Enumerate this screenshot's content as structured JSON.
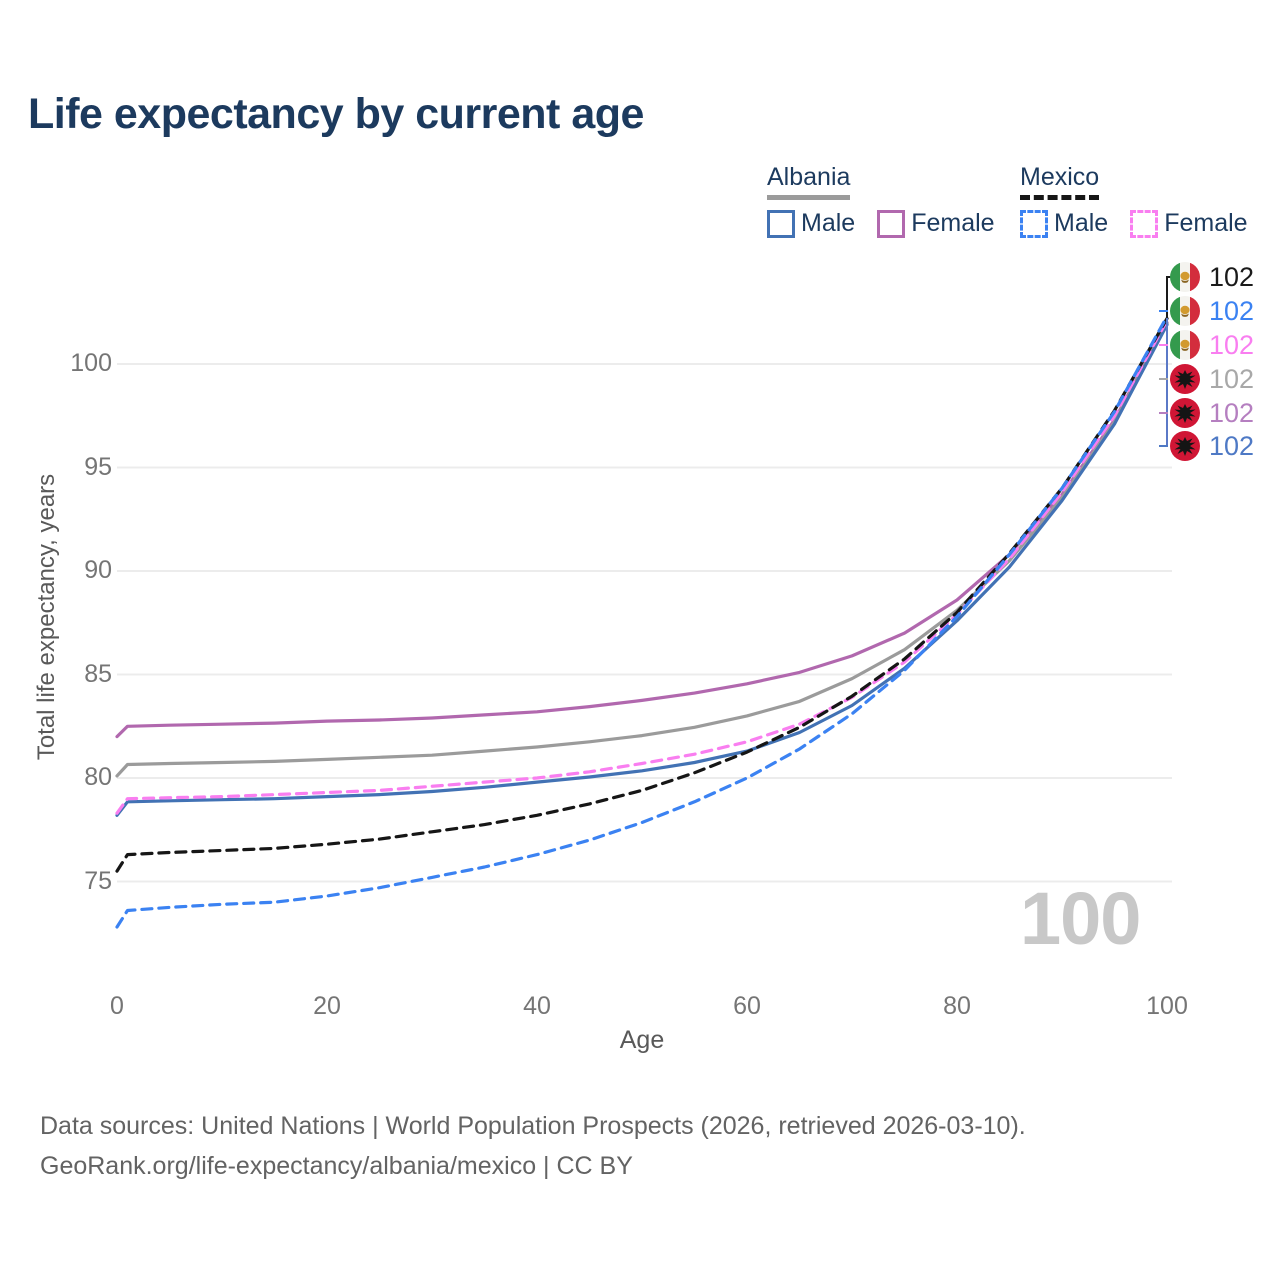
{
  "title": "Life expectancy by current age",
  "legend": {
    "albania": {
      "label": "Albania",
      "male": "Male",
      "female": "Female"
    },
    "mexico": {
      "label": "Mexico",
      "male": "Male",
      "female": "Female"
    }
  },
  "chart_data": {
    "type": "line",
    "title": "Life expectancy by current age",
    "xlabel": "Age",
    "ylabel": "Total life expectancy, years",
    "x_ticks": [
      0,
      20,
      40,
      60,
      80,
      100
    ],
    "y_ticks": [
      75,
      80,
      85,
      90,
      95,
      100
    ],
    "xlim": [
      0,
      100
    ],
    "ylim": [
      72,
      103.5
    ],
    "grid": "horizontal",
    "legend_position": "top-right",
    "watermark": "100",
    "ages": [
      0,
      1,
      5,
      10,
      15,
      20,
      25,
      30,
      35,
      40,
      45,
      50,
      55,
      60,
      65,
      70,
      75,
      80,
      85,
      90,
      95,
      100
    ],
    "series": [
      {
        "name": "Albania Female",
        "country": "Albania",
        "sex": "Female",
        "style": "solid",
        "color": "#b168ae",
        "values": [
          82.0,
          82.5,
          82.55,
          82.6,
          82.65,
          82.75,
          82.8,
          82.9,
          83.05,
          83.2,
          83.45,
          83.75,
          84.1,
          84.55,
          85.1,
          85.9,
          87.0,
          88.6,
          90.8,
          93.7,
          97.3,
          102.0
        ]
      },
      {
        "name": "Albania Total",
        "country": "Albania",
        "sex": "Both",
        "style": "solid",
        "color": "#9b9b9b",
        "values": [
          80.1,
          80.65,
          80.7,
          80.75,
          80.8,
          80.9,
          81.0,
          81.1,
          81.3,
          81.5,
          81.75,
          82.05,
          82.45,
          83.0,
          83.7,
          84.8,
          86.2,
          88.1,
          90.5,
          93.55,
          97.2,
          101.95
        ]
      },
      {
        "name": "Albania Male",
        "country": "Albania",
        "sex": "Male",
        "style": "solid",
        "color": "#4272b4",
        "values": [
          78.2,
          78.85,
          78.9,
          78.95,
          79.0,
          79.1,
          79.2,
          79.35,
          79.55,
          79.8,
          80.05,
          80.35,
          80.75,
          81.3,
          82.2,
          83.5,
          85.3,
          87.6,
          90.2,
          93.4,
          97.1,
          101.9
        ]
      },
      {
        "name": "Mexico Female",
        "country": "Mexico",
        "sex": "Female",
        "style": "dashed",
        "color": "#f97ef0",
        "values": [
          78.3,
          79.0,
          79.05,
          79.1,
          79.2,
          79.3,
          79.4,
          79.6,
          79.8,
          80.0,
          80.3,
          80.7,
          81.15,
          81.75,
          82.6,
          83.9,
          85.6,
          87.9,
          90.6,
          93.8,
          97.5,
          102.1
        ]
      },
      {
        "name": "Mexico Total",
        "country": "Mexico",
        "sex": "Both",
        "style": "dashed",
        "color": "#161616",
        "values": [
          75.5,
          76.3,
          76.4,
          76.5,
          76.6,
          76.8,
          77.05,
          77.4,
          77.75,
          78.2,
          78.75,
          79.4,
          80.25,
          81.25,
          82.45,
          83.95,
          85.75,
          88.0,
          90.85,
          94.0,
          97.75,
          102.2
        ]
      },
      {
        "name": "Mexico Male",
        "country": "Mexico",
        "sex": "Male",
        "style": "dashed",
        "color": "#3b82f2",
        "values": [
          72.8,
          73.6,
          73.75,
          73.9,
          74.0,
          74.3,
          74.7,
          75.2,
          75.7,
          76.3,
          77.0,
          77.85,
          78.85,
          80.0,
          81.4,
          83.1,
          85.2,
          87.8,
          90.8,
          94.0,
          97.7,
          102.3
        ]
      }
    ]
  },
  "end_labels": [
    {
      "flag": "mexico",
      "series": "Mexico Total",
      "color": "#1a1a1a",
      "value": "102"
    },
    {
      "flag": "mexico",
      "series": "Mexico Male",
      "color": "#3b82f2",
      "value": "102"
    },
    {
      "flag": "mexico",
      "series": "Mexico Female",
      "color": "#f97ef0",
      "value": "102"
    },
    {
      "flag": "albania",
      "series": "Albania Total",
      "color": "#a8a8a8",
      "value": "102"
    },
    {
      "flag": "albania",
      "series": "Albania Female",
      "color": "#b57fc0",
      "value": "102"
    },
    {
      "flag": "albania",
      "series": "Albania Male",
      "color": "#4e79c5",
      "value": "102"
    }
  ],
  "footer": {
    "line1": "Data sources: United Nations | World Population Prospects (2026, retrieved 2026-03-10).",
    "line2": "GeoRank.org/life-expectancy/albania/mexico | CC BY"
  },
  "colors": {
    "title_text": "#1c3a5e",
    "axis_text": "#757575",
    "grid": "#ececec",
    "watermark": "#c8c8c8",
    "albania_male": "#4272b4",
    "albania_female": "#b168ae",
    "albania_total": "#9b9b9b",
    "mexico_male": "#3b82f2",
    "mexico_female": "#f97ef0",
    "mexico_total": "#161616"
  }
}
